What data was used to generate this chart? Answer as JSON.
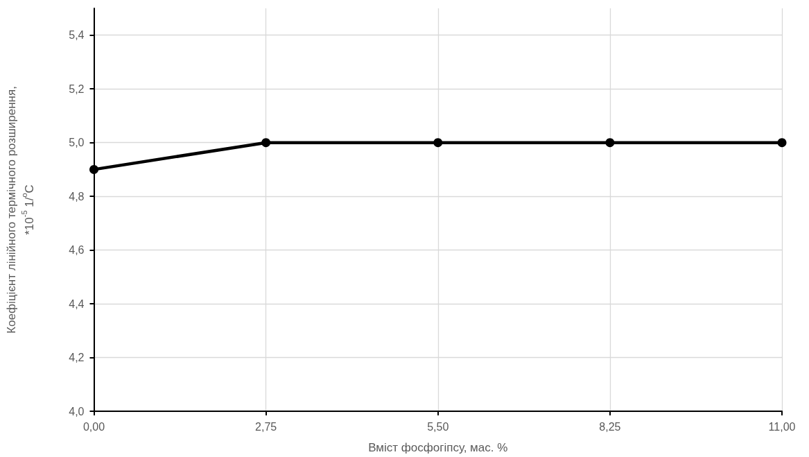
{
  "chart_data": {
    "type": "line",
    "xlabel": "Вміст фосфогіпсу, мас. %",
    "ylabel": "Коефіцієнт лінійного термічного розширення, *10$^{-5}$ 1/$^{o}$C",
    "x": [
      0,
      2.75,
      5.5,
      8.25,
      11
    ],
    "series": [
      {
        "color": "#000000",
        "values": [
          4.9,
          5.0,
          5.0,
          5.0,
          5.0
        ]
      }
    ],
    "xlim": [
      0,
      11
    ],
    "xticks": [
      {
        "value": 0,
        "label": "0,00"
      },
      {
        "value": 2.75,
        "label": "2,75"
      },
      {
        "value": 5.5,
        "label": "5,50"
      },
      {
        "value": 8.25,
        "label": "8,25"
      },
      {
        "value": 11,
        "label": "11,00"
      }
    ],
    "ylim": [
      4,
      5.5
    ],
    "yticks": [
      {
        "value": 4,
        "label": "4,0"
      },
      {
        "value": 4.2,
        "label": "4,2"
      },
      {
        "value": 4.4,
        "label": "4,4"
      },
      {
        "value": 4.6,
        "label": "4,6"
      },
      {
        "value": 4.8,
        "label": "4,8"
      },
      {
        "value": 5,
        "label": "5,0"
      },
      {
        "value": 5.2,
        "label": "5,2"
      },
      {
        "value": 5.4,
        "label": "5,4"
      }
    ],
    "grid": true,
    "marker": "circle",
    "line_style": "solid"
  }
}
